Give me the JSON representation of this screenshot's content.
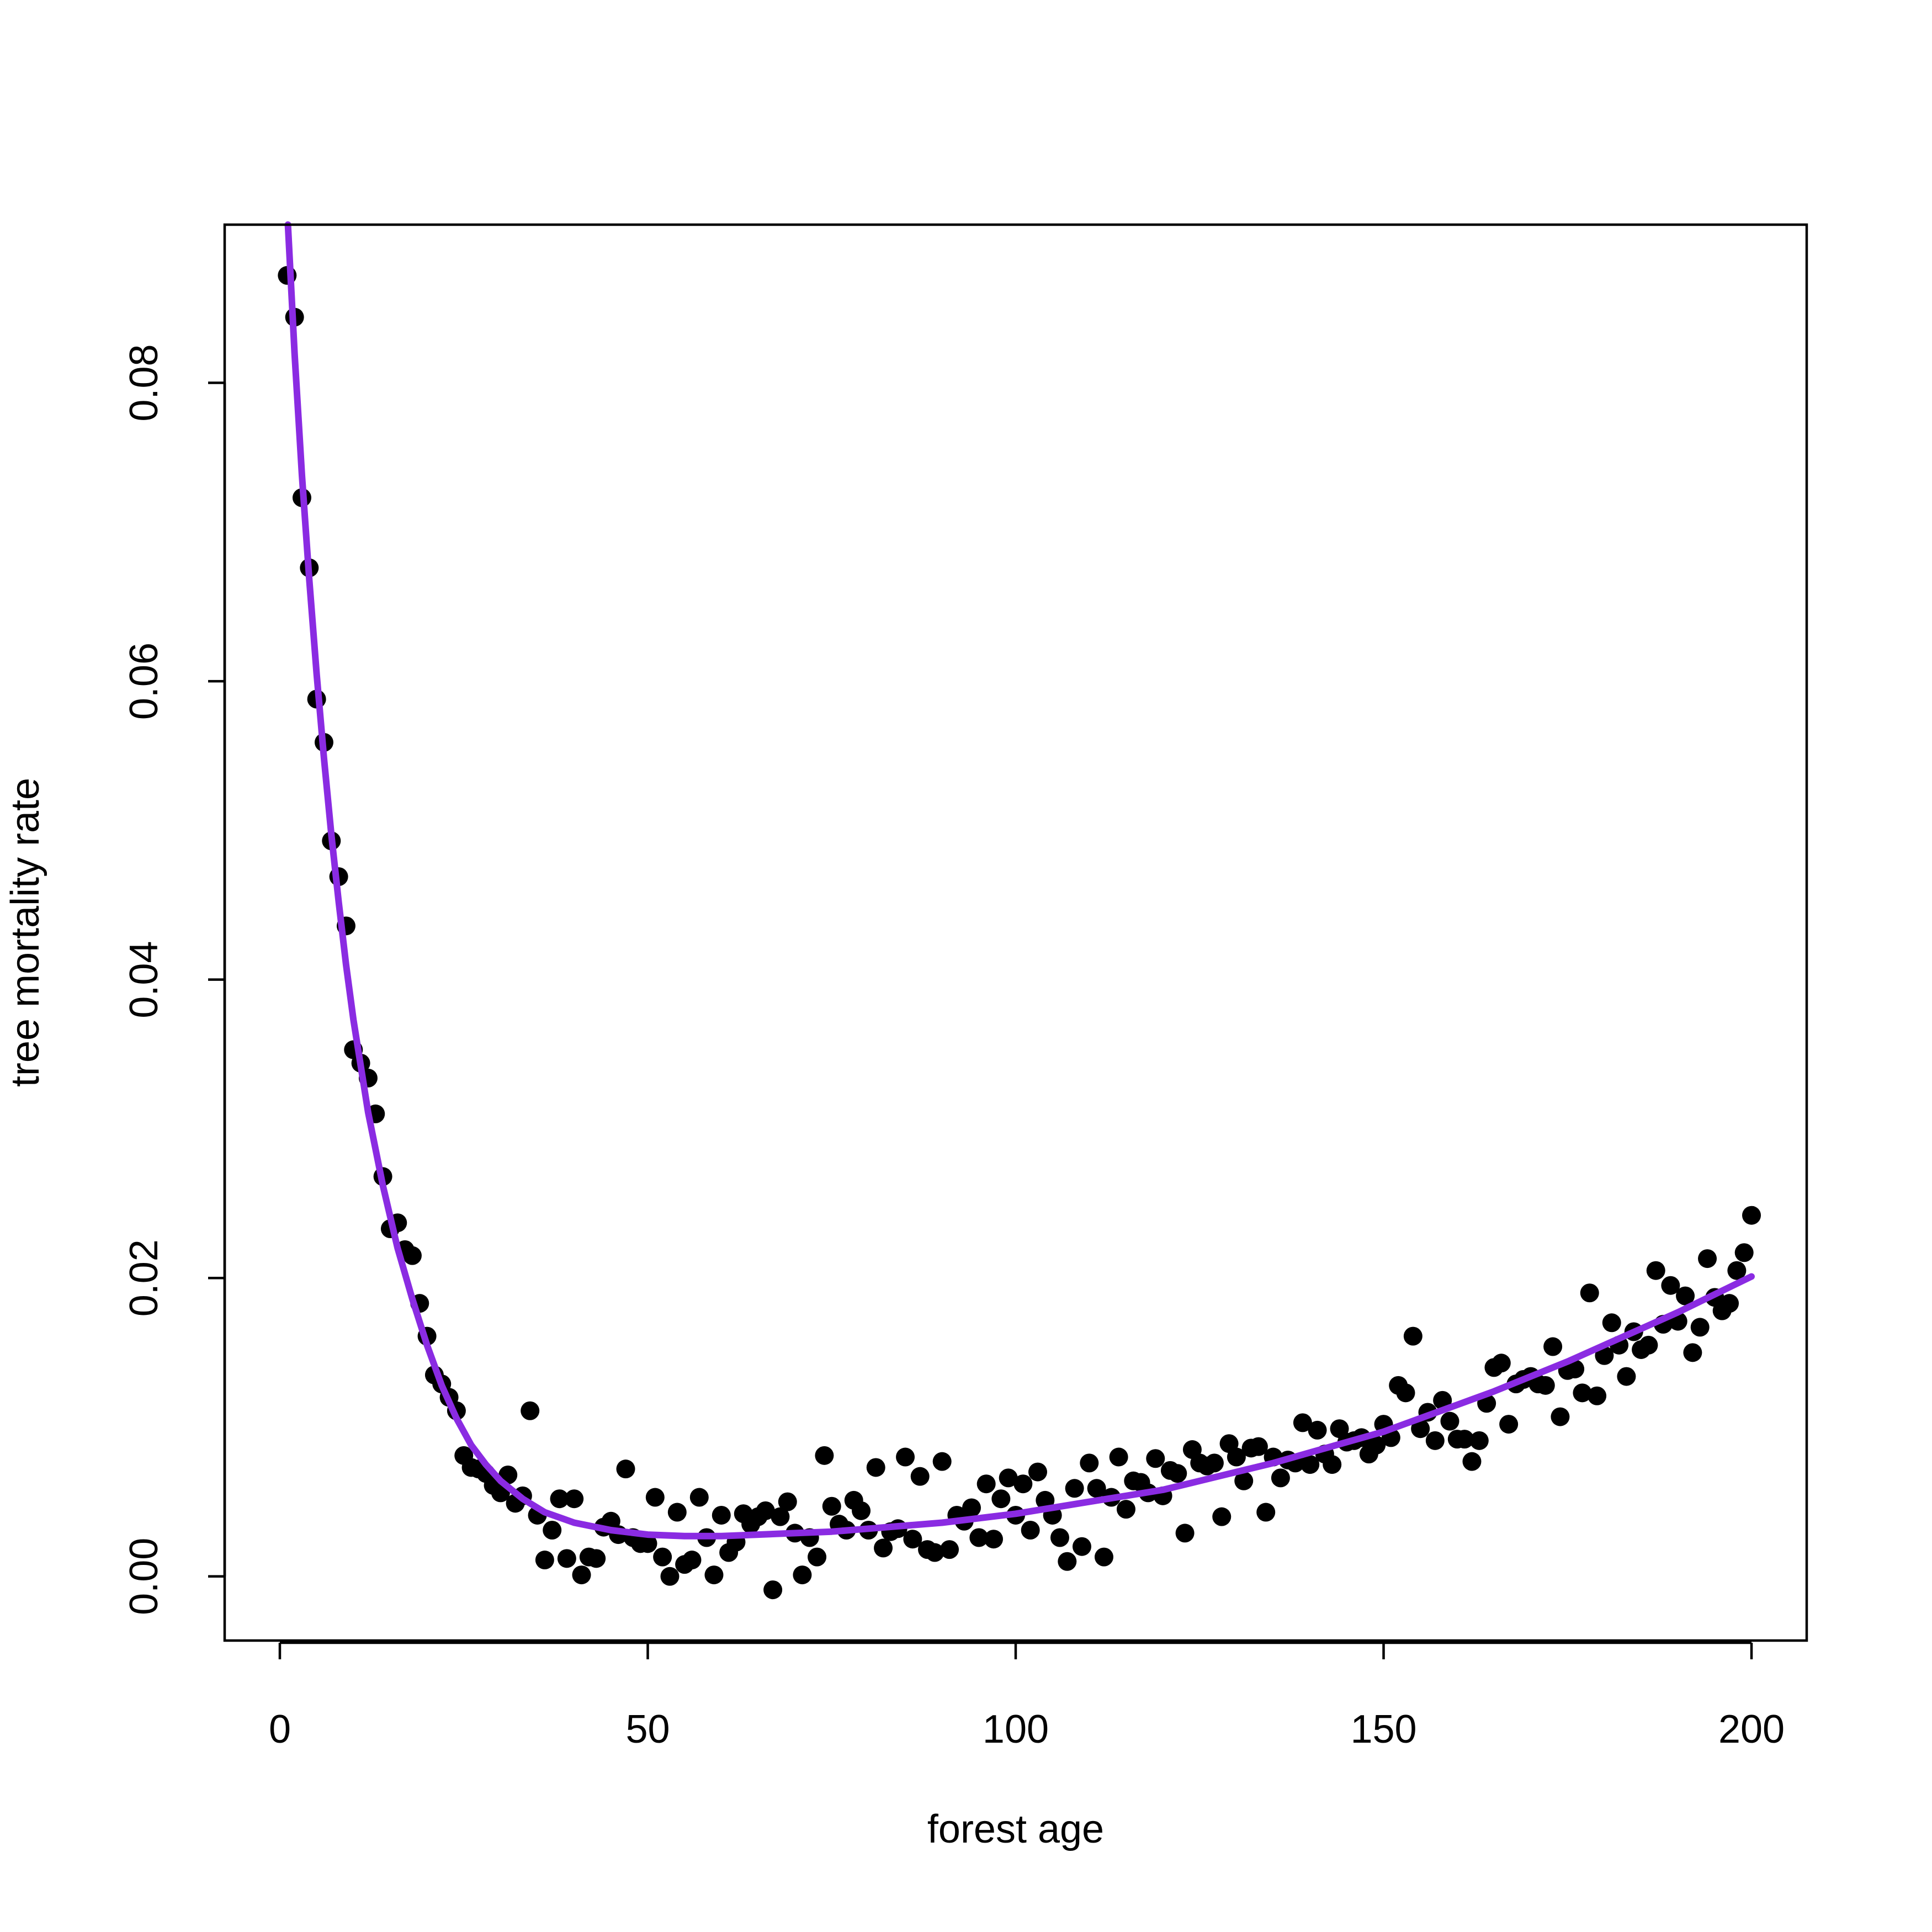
{
  "chart_data": {
    "type": "scatter",
    "title": "",
    "xlabel": "forest age",
    "ylabel": "tree mortality rate",
    "xlim": [
      -7.5,
      207.5
    ],
    "ylim": [
      -0.0043,
      0.0906
    ],
    "x_ticks": [
      0,
      50,
      100,
      150,
      200
    ],
    "x_tick_labels": [
      "0",
      "50",
      "100",
      "150",
      "200"
    ],
    "y_ticks": [
      0,
      0.02,
      0.04,
      0.06,
      0.08
    ],
    "y_tick_labels": [
      "0.00",
      "0.02",
      "0.04",
      "0.06",
      "0.08"
    ],
    "grid": false,
    "legend": "none",
    "point_color": "#000000",
    "curve_color": "#8A2BE2",
    "series": [
      {
        "kind": "points",
        "points": [
          [
            1,
            0.0872
          ],
          [
            2,
            0.0844
          ],
          [
            3,
            0.0723
          ],
          [
            4,
            0.0676
          ],
          [
            5,
            0.0588
          ],
          [
            6,
            0.0559
          ],
          [
            7,
            0.0493
          ],
          [
            8,
            0.0469
          ],
          [
            9,
            0.0436
          ],
          [
            10,
            0.0353
          ],
          [
            11,
            0.0344
          ],
          [
            12,
            0.0334
          ],
          [
            13,
            0.031
          ],
          [
            14,
            0.0268
          ],
          [
            15,
            0.0233
          ],
          [
            16,
            0.0237
          ],
          [
            17,
            0.0219
          ],
          [
            18,
            0.0215
          ],
          [
            19,
            0.0183
          ],
          [
            20,
            0.0161
          ],
          [
            21,
            0.0135
          ],
          [
            22,
            0.0129
          ],
          [
            23,
            0.012
          ],
          [
            24,
            0.0111
          ],
          [
            25,
            0.0081
          ],
          [
            26,
            0.0073
          ],
          [
            27,
            0.0072
          ],
          [
            28,
            0.0069
          ],
          [
            29,
            0.0061
          ],
          [
            30,
            0.0056
          ],
          [
            31,
            0.0068
          ],
          [
            32,
            0.0049
          ],
          [
            33,
            0.0054
          ],
          [
            34,
            0.0111
          ],
          [
            35,
            0.0041
          ],
          [
            36,
            0.0011
          ],
          [
            37,
            0.0031
          ],
          [
            38,
            0.0052
          ],
          [
            39,
            0.0012
          ],
          [
            40,
            0.0052
          ],
          [
            41,
            0.0001
          ],
          [
            42,
            0.0013
          ],
          [
            43,
            0.0012
          ],
          [
            44,
            0.0033
          ],
          [
            45,
            0.0037
          ],
          [
            46,
            0.0028
          ],
          [
            47,
            0.0072
          ],
          [
            48,
            0.0026
          ],
          [
            49,
            0.0022
          ],
          [
            50,
            0.0022
          ],
          [
            51,
            0.0053
          ],
          [
            52,
            0.0013
          ],
          [
            53,
            0.0
          ],
          [
            54,
            0.0043
          ],
          [
            55,
            0.0008
          ],
          [
            56,
            0.0011
          ],
          [
            57,
            0.0053
          ],
          [
            58,
            0.0026
          ],
          [
            59,
            0.0001
          ],
          [
            60,
            0.0041
          ],
          [
            61,
            0.0016
          ],
          [
            62,
            0.0023
          ],
          [
            63,
            0.0042
          ],
          [
            64,
            0.0035
          ],
          [
            65,
            0.004
          ],
          [
            66,
            0.0044
          ],
          [
            67,
            -0.0009
          ],
          [
            68,
            0.004
          ],
          [
            69,
            0.005
          ],
          [
            70,
            0.0029
          ],
          [
            71,
            0.0001
          ],
          [
            72,
            0.0026
          ],
          [
            73,
            0.0013
          ],
          [
            74,
            0.0081
          ],
          [
            75,
            0.0047
          ],
          [
            76,
            0.0035
          ],
          [
            77,
            0.0031
          ],
          [
            78,
            0.0051
          ],
          [
            79,
            0.0044
          ],
          [
            80,
            0.0031
          ],
          [
            81,
            0.0073
          ],
          [
            82,
            0.0019
          ],
          [
            83,
            0.003
          ],
          [
            84,
            0.0032
          ],
          [
            85,
            0.008
          ],
          [
            86,
            0.0025
          ],
          [
            87,
            0.0067
          ],
          [
            88,
            0.0018
          ],
          [
            89,
            0.0016
          ],
          [
            90,
            0.0077
          ],
          [
            91,
            0.0018
          ],
          [
            92,
            0.0041
          ],
          [
            93,
            0.0037
          ],
          [
            94,
            0.0046
          ],
          [
            95,
            0.0026
          ],
          [
            96,
            0.0062
          ],
          [
            97,
            0.0025
          ],
          [
            98,
            0.0052
          ],
          [
            99,
            0.0066
          ],
          [
            100,
            0.0041
          ],
          [
            101,
            0.0062
          ],
          [
            102,
            0.0031
          ],
          [
            103,
            0.007
          ],
          [
            104,
            0.0051
          ],
          [
            105,
            0.0041
          ],
          [
            106,
            0.0026
          ],
          [
            107,
            0.001
          ],
          [
            108,
            0.0059
          ],
          [
            109,
            0.002
          ],
          [
            110,
            0.0076
          ],
          [
            111,
            0.0059
          ],
          [
            112,
            0.0013
          ],
          [
            113,
            0.0053
          ],
          [
            114,
            0.008
          ],
          [
            115,
            0.0045
          ],
          [
            116,
            0.0064
          ],
          [
            117,
            0.0063
          ],
          [
            118,
            0.0056
          ],
          [
            119,
            0.0079
          ],
          [
            120,
            0.0054
          ],
          [
            121,
            0.0071
          ],
          [
            122,
            0.0069
          ],
          [
            123,
            0.0029
          ],
          [
            124,
            0.0085
          ],
          [
            125,
            0.0076
          ],
          [
            126,
            0.0074
          ],
          [
            127,
            0.0076
          ],
          [
            128,
            0.004
          ],
          [
            129,
            0.0089
          ],
          [
            130,
            0.008
          ],
          [
            131,
            0.0064
          ],
          [
            132,
            0.0086
          ],
          [
            133,
            0.0087
          ],
          [
            134,
            0.0043
          ],
          [
            135,
            0.008
          ],
          [
            136,
            0.0066
          ],
          [
            137,
            0.0078
          ],
          [
            138,
            0.0076
          ],
          [
            139,
            0.0103
          ],
          [
            140,
            0.0075
          ],
          [
            141,
            0.0098
          ],
          [
            142,
            0.0082
          ],
          [
            143,
            0.0075
          ],
          [
            144,
            0.0099
          ],
          [
            145,
            0.009
          ],
          [
            146,
            0.0091
          ],
          [
            147,
            0.0093
          ],
          [
            148,
            0.0082
          ],
          [
            149,
            0.0088
          ],
          [
            150,
            0.0102
          ],
          [
            151,
            0.0093
          ],
          [
            152,
            0.0128
          ],
          [
            153,
            0.0123
          ],
          [
            154,
            0.0161
          ],
          [
            155,
            0.0099
          ],
          [
            156,
            0.011
          ],
          [
            157,
            0.0091
          ],
          [
            158,
            0.0118
          ],
          [
            159,
            0.0104
          ],
          [
            160,
            0.0092
          ],
          [
            161,
            0.0092
          ],
          [
            162,
            0.0077
          ],
          [
            163,
            0.0091
          ],
          [
            164,
            0.0116
          ],
          [
            165,
            0.014
          ],
          [
            166,
            0.0143
          ],
          [
            167,
            0.0102
          ],
          [
            168,
            0.0129
          ],
          [
            169,
            0.0132
          ],
          [
            170,
            0.0134
          ],
          [
            171,
            0.0129
          ],
          [
            172,
            0.0128
          ],
          [
            173,
            0.0154
          ],
          [
            174,
            0.0107
          ],
          [
            175,
            0.0138
          ],
          [
            176,
            0.0139
          ],
          [
            177,
            0.0123
          ],
          [
            178,
            0.019
          ],
          [
            179,
            0.0121
          ],
          [
            180,
            0.0148
          ],
          [
            181,
            0.017
          ],
          [
            182,
            0.0155
          ],
          [
            183,
            0.0134
          ],
          [
            184,
            0.0164
          ],
          [
            185,
            0.0152
          ],
          [
            186,
            0.0155
          ],
          [
            187,
            0.0205
          ],
          [
            188,
            0.0169
          ],
          [
            189,
            0.0195
          ],
          [
            190,
            0.0171
          ],
          [
            191,
            0.0188
          ],
          [
            192,
            0.015
          ],
          [
            193,
            0.0167
          ],
          [
            194,
            0.0213
          ],
          [
            195,
            0.0187
          ],
          [
            196,
            0.0178
          ],
          [
            197,
            0.0183
          ],
          [
            198,
            0.0205
          ],
          [
            199,
            0.0217
          ],
          [
            200,
            0.0242
          ]
        ]
      },
      {
        "kind": "fitted-curve",
        "points": [
          [
            1.1,
            0.0906
          ],
          [
            2,
            0.082
          ],
          [
            3,
            0.0738
          ],
          [
            4,
            0.0668
          ],
          [
            5,
            0.0605
          ],
          [
            6,
            0.0548
          ],
          [
            7,
            0.0497
          ],
          [
            8,
            0.0452
          ],
          [
            9,
            0.041
          ],
          [
            10,
            0.0373
          ],
          [
            12,
            0.0311
          ],
          [
            14,
            0.0262
          ],
          [
            16,
            0.022
          ],
          [
            18,
            0.0186
          ],
          [
            20,
            0.0155
          ],
          [
            22,
            0.0128
          ],
          [
            24,
            0.0106
          ],
          [
            26,
            0.0088
          ],
          [
            28,
            0.0075
          ],
          [
            30,
            0.0064
          ],
          [
            33,
            0.0052
          ],
          [
            36,
            0.0043
          ],
          [
            40,
            0.0036
          ],
          [
            45,
            0.0031
          ],
          [
            50,
            0.0028
          ],
          [
            55,
            0.0027
          ],
          [
            60,
            0.0027
          ],
          [
            65,
            0.0028
          ],
          [
            70,
            0.0029
          ],
          [
            75,
            0.003
          ],
          [
            80,
            0.0032
          ],
          [
            85,
            0.0034
          ],
          [
            90,
            0.0036
          ],
          [
            95,
            0.0039
          ],
          [
            100,
            0.0042
          ],
          [
            105,
            0.0046
          ],
          [
            110,
            0.005
          ],
          [
            115,
            0.0054
          ],
          [
            120,
            0.0058
          ],
          [
            125,
            0.0064
          ],
          [
            130,
            0.007
          ],
          [
            135,
            0.0076
          ],
          [
            140,
            0.0083
          ],
          [
            145,
            0.009
          ],
          [
            150,
            0.0097
          ],
          [
            155,
            0.0106
          ],
          [
            160,
            0.0115
          ],
          [
            165,
            0.0124
          ],
          [
            170,
            0.0134
          ],
          [
            175,
            0.0144
          ],
          [
            180,
            0.0155
          ],
          [
            185,
            0.0166
          ],
          [
            190,
            0.0177
          ],
          [
            195,
            0.0189
          ],
          [
            200,
            0.0201
          ]
        ]
      }
    ]
  }
}
